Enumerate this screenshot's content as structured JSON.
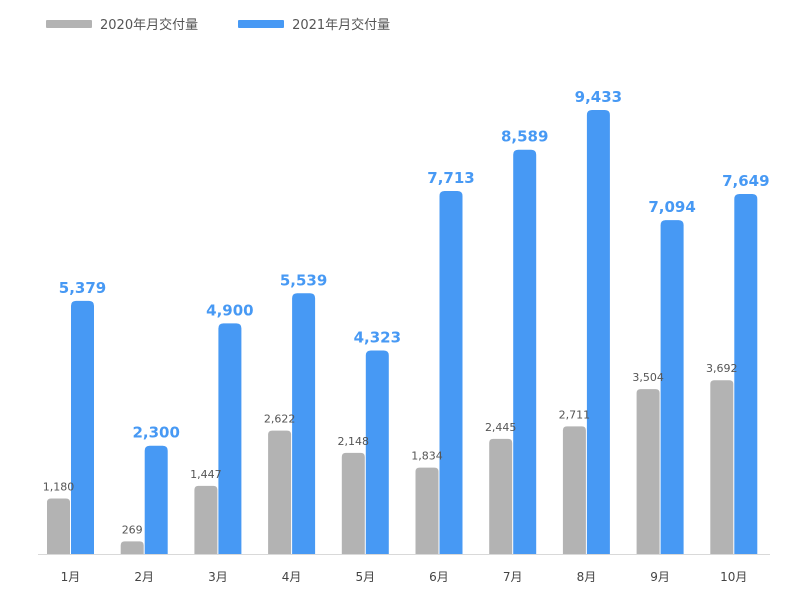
{
  "chart_data": {
    "type": "bar",
    "categories": [
      "1月",
      "2月",
      "3月",
      "4月",
      "5月",
      "6月",
      "7月",
      "8月",
      "9月",
      "10月"
    ],
    "series": [
      {
        "name": "2020年月交付量",
        "color": "#b3b3b3",
        "values": [
          1180,
          269,
          1447,
          2622,
          2148,
          1834,
          2445,
          2711,
          3504,
          3692
        ],
        "labels": [
          "1,180",
          "269",
          "1,447",
          "2,622",
          "2,148",
          "1,834",
          "2,445",
          "2,711",
          "3,504",
          "3,692"
        ]
      },
      {
        "name": "2021年月交付量",
        "color": "#4799f4",
        "values": [
          5379,
          2300,
          4900,
          5539,
          4323,
          7713,
          8589,
          9433,
          7094,
          7649
        ],
        "labels": [
          "5,379",
          "2,300",
          "4,900",
          "5,539",
          "4,323",
          "7,713",
          "8,589",
          "9,433",
          "7,094",
          "7,649"
        ]
      }
    ],
    "ylim": [
      0,
      9433
    ],
    "grid": false,
    "legend_position": "top-left",
    "title": "",
    "xlabel": "",
    "ylabel": ""
  }
}
